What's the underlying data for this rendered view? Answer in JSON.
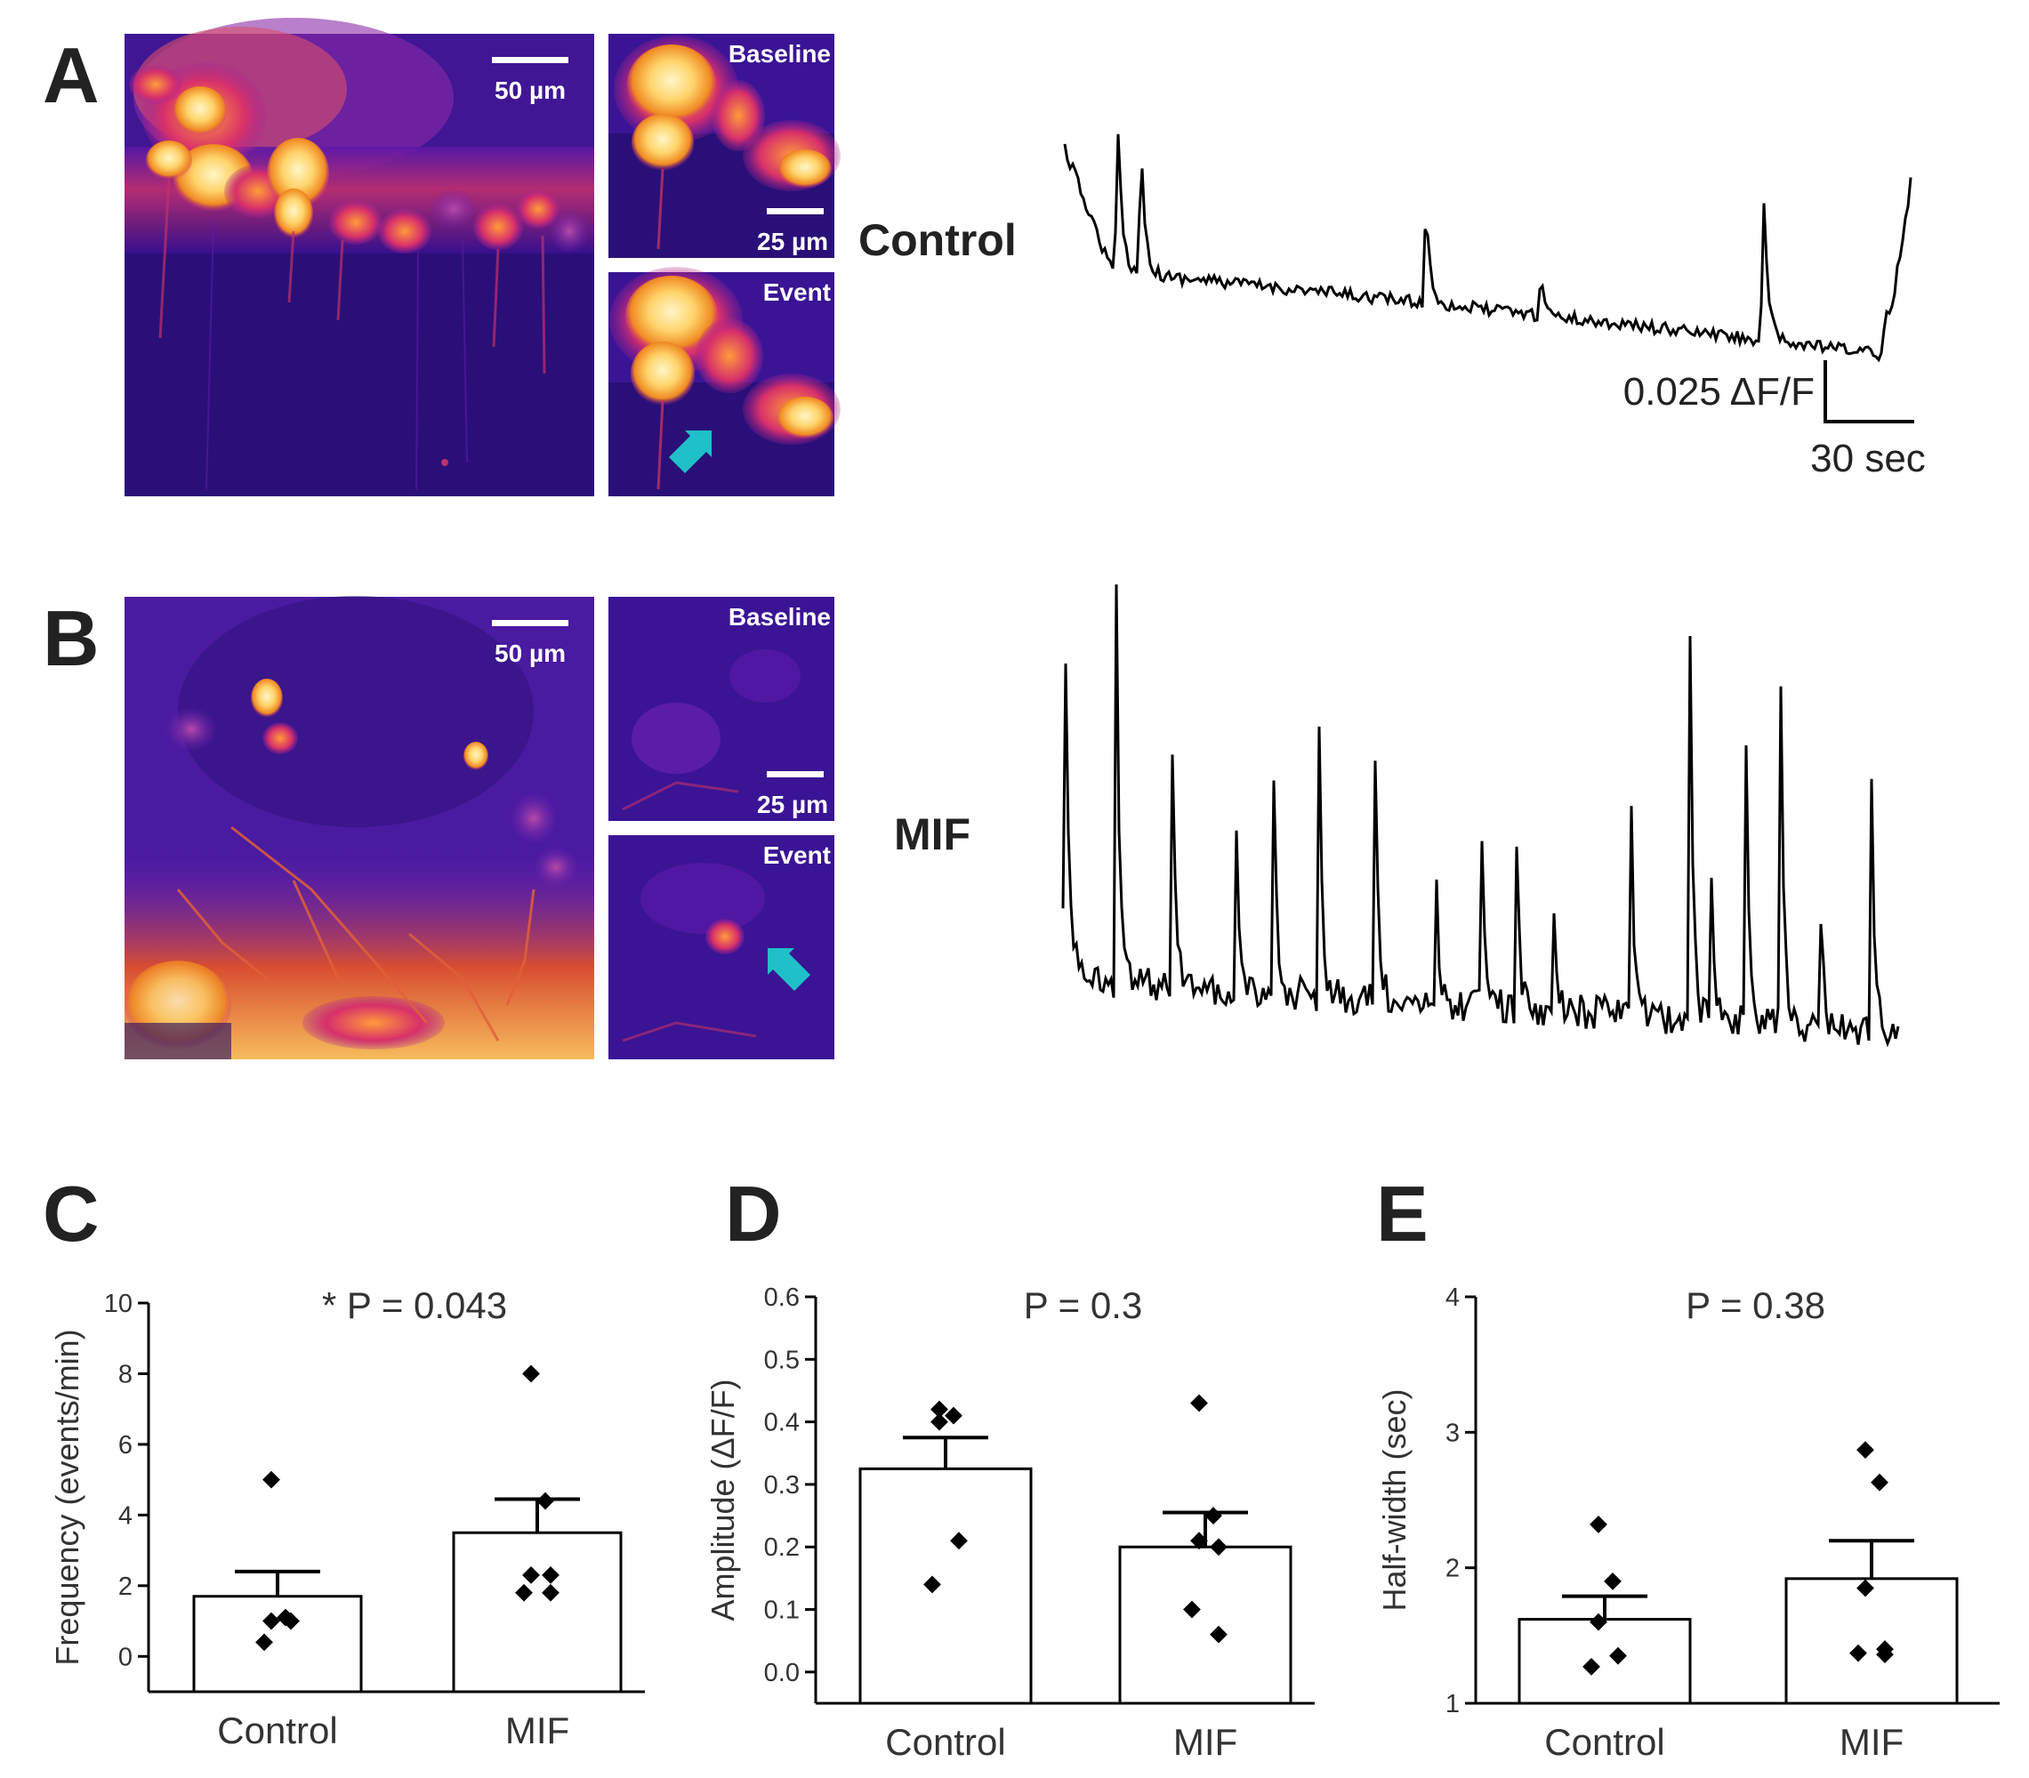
{
  "panels": {
    "A": {
      "letter": "A",
      "condition": "Control",
      "scalebar_main": "50 µm",
      "scalebar_inset": "25 µm",
      "inset_top": "Baseline",
      "inset_bottom": "Event",
      "trace_scale_y": "0.025 ΔF/F",
      "trace_scale_x": "30 sec"
    },
    "B": {
      "letter": "B",
      "condition": "MIF",
      "scalebar_main": "50 µm",
      "scalebar_inset": "25 µm",
      "inset_top": "Baseline",
      "inset_bottom": "Event"
    }
  },
  "colors": {
    "bg_dark": "#1f0a66",
    "purple": "#6a1fb0",
    "magenta": "#c4287a",
    "orange": "#f3961f",
    "yellow": "#fff2a8",
    "arrow": "#1fc0c8"
  },
  "chart_data": [
    {
      "panel": "C",
      "type": "bar",
      "categories": [
        "Control",
        "MIF"
      ],
      "values": [
        1.7,
        3.5
      ],
      "errors": [
        0.7,
        0.95
      ],
      "points": [
        [
          5.0,
          1.1,
          1.0,
          1.0,
          0.4
        ],
        [
          8.0,
          4.4,
          2.3,
          2.3,
          1.8,
          1.8
        ]
      ],
      "pvalue": "* P = 0.043",
      "ylabel": "Frequency (events/min)",
      "ylim": [
        -1,
        10
      ],
      "yticks": [
        0,
        2,
        4,
        6,
        8,
        10
      ]
    },
    {
      "panel": "D",
      "type": "bar",
      "categories": [
        "Control",
        "MIF"
      ],
      "values": [
        0.325,
        0.2
      ],
      "errors": [
        0.05,
        0.055
      ],
      "points": [
        [
          0.42,
          0.41,
          0.4,
          0.21,
          0.14
        ],
        [
          0.43,
          0.25,
          0.21,
          0.2,
          0.1,
          0.06
        ]
      ],
      "pvalue": "P = 0.3",
      "ylabel": "Amplitude (ΔF/F)",
      "ylim": [
        -0.05,
        0.6
      ],
      "yticks": [
        0.0,
        0.1,
        0.2,
        0.3,
        0.4,
        0.5,
        0.6
      ],
      "ytick_labels": [
        "0.0",
        "0.1",
        "0.2",
        "0.3",
        "0.4",
        "0.5",
        "0.6"
      ]
    },
    {
      "panel": "E",
      "type": "bar",
      "categories": [
        "Control",
        "MIF"
      ],
      "values": [
        1.62,
        1.92
      ],
      "errors": [
        0.17,
        0.28
      ],
      "points": [
        [
          2.32,
          1.9,
          1.6,
          1.35,
          1.27
        ],
        [
          2.87,
          2.63,
          1.85,
          1.4,
          1.37,
          1.36
        ]
      ],
      "pvalue": "P = 0.38",
      "ylabel": "Half-width (sec)",
      "ylim": [
        1,
        4
      ],
      "yticks": [
        1,
        2,
        3,
        4
      ]
    }
  ]
}
